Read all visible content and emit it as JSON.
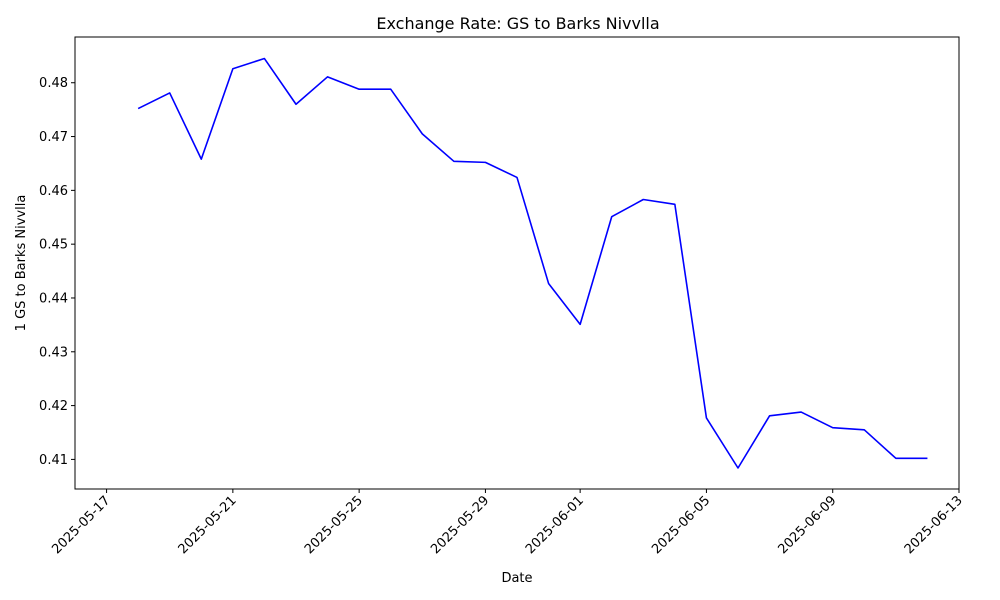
{
  "chart_data": {
    "type": "line",
    "title": "Exchange Rate: GS to Barks Nivvlla",
    "xlabel": "Date",
    "ylabel": "1 GS to Barks Nivvlla",
    "x_tick_labels": [
      "2025-05-17",
      "2025-05-21",
      "2025-05-25",
      "2025-05-29",
      "2025-06-01",
      "2025-06-05",
      "2025-06-09",
      "2025-06-13"
    ],
    "y_tick_labels": [
      "0.41",
      "0.42",
      "0.43",
      "0.44",
      "0.45",
      "0.46",
      "0.47",
      "0.48"
    ],
    "xlim": [
      "2025-05-16",
      "2025-06-13"
    ],
    "ylim": [
      0.4045,
      0.4885
    ],
    "grid": false,
    "line_color": "#0000ff",
    "series": [
      {
        "x": [
          "2025-05-18",
          "2025-05-19",
          "2025-05-20",
          "2025-05-21",
          "2025-05-22",
          "2025-05-23",
          "2025-05-24",
          "2025-05-25",
          "2025-05-26",
          "2025-05-27",
          "2025-05-28",
          "2025-05-29",
          "2025-05-30",
          "2025-05-31",
          "2025-06-01",
          "2025-06-02",
          "2025-06-03",
          "2025-06-04",
          "2025-06-05",
          "2025-06-06",
          "2025-06-07",
          "2025-06-08",
          "2025-06-09",
          "2025-06-10",
          "2025-06-11",
          "2025-06-12"
        ],
        "values": [
          0.4752,
          0.4781,
          0.4658,
          0.4826,
          0.4845,
          0.476,
          0.4811,
          0.4788,
          0.4788,
          0.4705,
          0.4654,
          0.4652,
          0.4624,
          0.4427,
          0.4351,
          0.4551,
          0.4583,
          0.4574,
          0.4177,
          0.4084,
          0.4181,
          0.4188,
          0.4159,
          0.4155,
          0.4102,
          0.4102
        ]
      }
    ]
  }
}
